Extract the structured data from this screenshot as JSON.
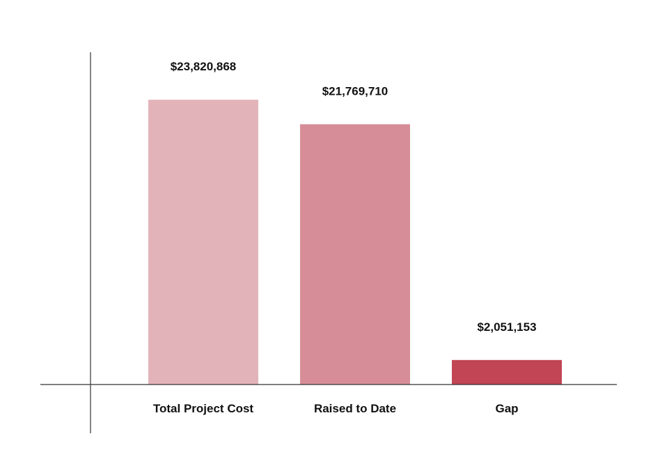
{
  "chart_data": {
    "type": "bar",
    "categories": [
      "Total Project Cost",
      "Raised to Date",
      "Gap"
    ],
    "values": [
      23820868,
      21769710,
      2051153
    ],
    "value_labels": [
      "$23,820,868",
      "$21,769,710",
      "$2,051,153"
    ],
    "colors": [
      "#e3b3ba",
      "#d68d97",
      "#c14555"
    ],
    "title": "",
    "xlabel": "",
    "ylabel": "",
    "ylim": [
      0,
      27500000
    ],
    "grid": false,
    "legend": "none"
  }
}
